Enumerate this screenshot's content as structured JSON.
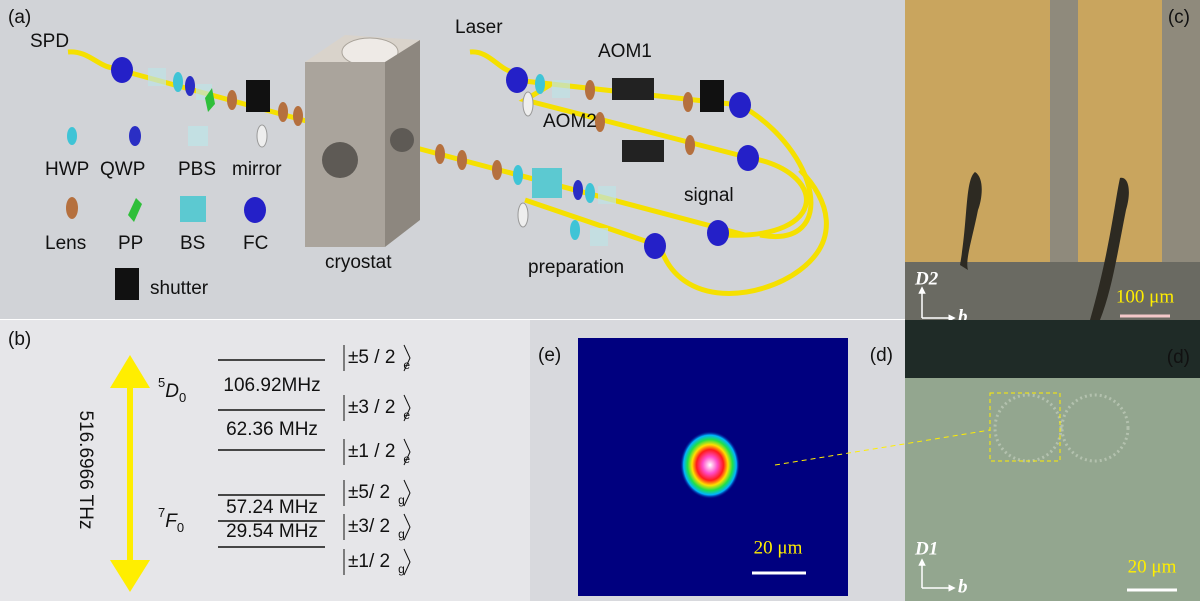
{
  "panel_a": {
    "label": "(a)",
    "spd": "SPD",
    "laser": "Laser",
    "aom1": "AOM1",
    "aom2": "AOM2",
    "cryostat": "cryostat",
    "signal": "signal",
    "preparation": "preparation",
    "legend": {
      "hwp": "HWP",
      "qwp": "QWP",
      "pbs": "PBS",
      "mirror": "mirror",
      "lens": "Lens",
      "pp": "PP",
      "bs": "BS",
      "fc": "FC",
      "shutter": "shutter"
    }
  },
  "panel_b": {
    "label": "(b)",
    "transition": "516.6966 THz",
    "excited": {
      "sup": "5",
      "main": "D",
      "sub": "0",
      "splittings": [
        "106.92MHz",
        "62.36 MHz"
      ],
      "states": [
        "±5 / 2",
        "±3 / 2",
        "±1 / 2"
      ],
      "state_sub": "e"
    },
    "ground": {
      "sup": "7",
      "main": "F",
      "sub": "0",
      "splittings": [
        "57.24 MHz",
        "29.54 MHz"
      ],
      "states": [
        "±5/ 2",
        "±3/ 2",
        "±1/ 2"
      ],
      "state_sub": "g"
    }
  },
  "panel_c": {
    "label": "(c)",
    "axis_d": "D2",
    "axis_b": "b",
    "scale": "100 μm"
  },
  "panel_d": {
    "label": "(d)",
    "axis_d": "D1",
    "axis_b": "b",
    "scale": "20 μm"
  },
  "panel_e": {
    "label": "(e)",
    "scale": "20 μm"
  }
}
